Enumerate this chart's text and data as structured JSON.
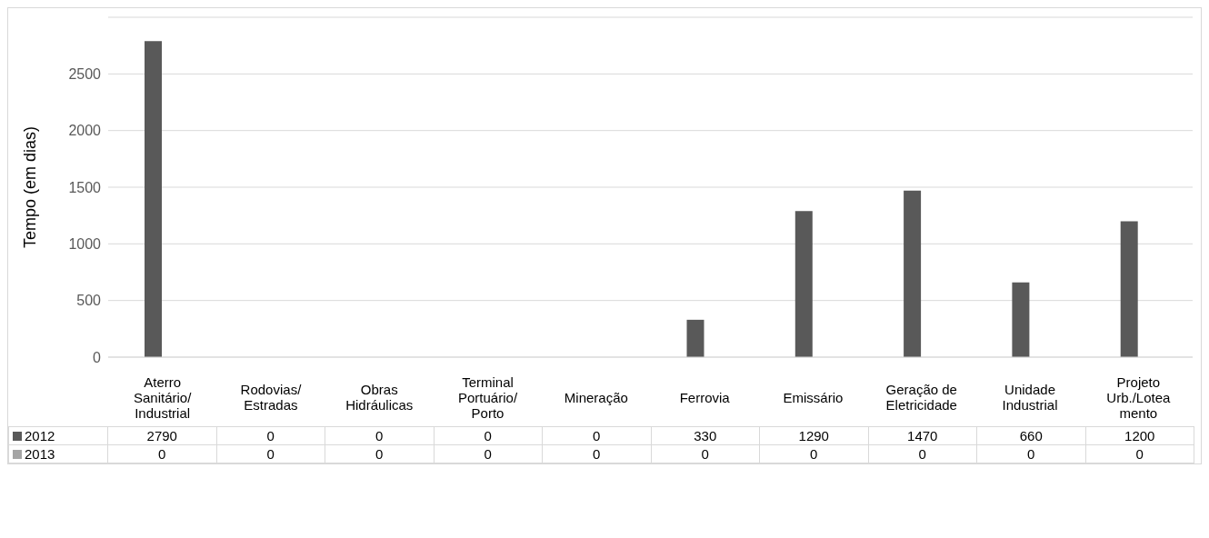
{
  "chart_data": {
    "type": "bar",
    "ylabel": "Tempo (em dias)",
    "categories": [
      "Aterro Sanitário/ Industrial",
      "Rodovias/ Estradas",
      "Obras Hidráulicas",
      "Terminal Portuário/ Porto",
      "Mineração",
      "Ferrovia",
      "Emissário",
      "Geração de Eletricidade",
      "Unidade Industrial",
      "Projeto Urb./Loteamento"
    ],
    "series": [
      {
        "name": "2012",
        "color": "#595959",
        "values": [
          2790,
          0,
          0,
          0,
          0,
          330,
          1290,
          1470,
          660,
          1200
        ]
      },
      {
        "name": "2013",
        "color": "#a5a5a5",
        "values": [
          0,
          0,
          0,
          0,
          0,
          0,
          0,
          0,
          0,
          0
        ]
      }
    ],
    "ylim": [
      0,
      3000
    ],
    "yticks": [
      0,
      500,
      1000,
      1500,
      2000,
      2500
    ],
    "grid": "y",
    "data_labels": true
  }
}
